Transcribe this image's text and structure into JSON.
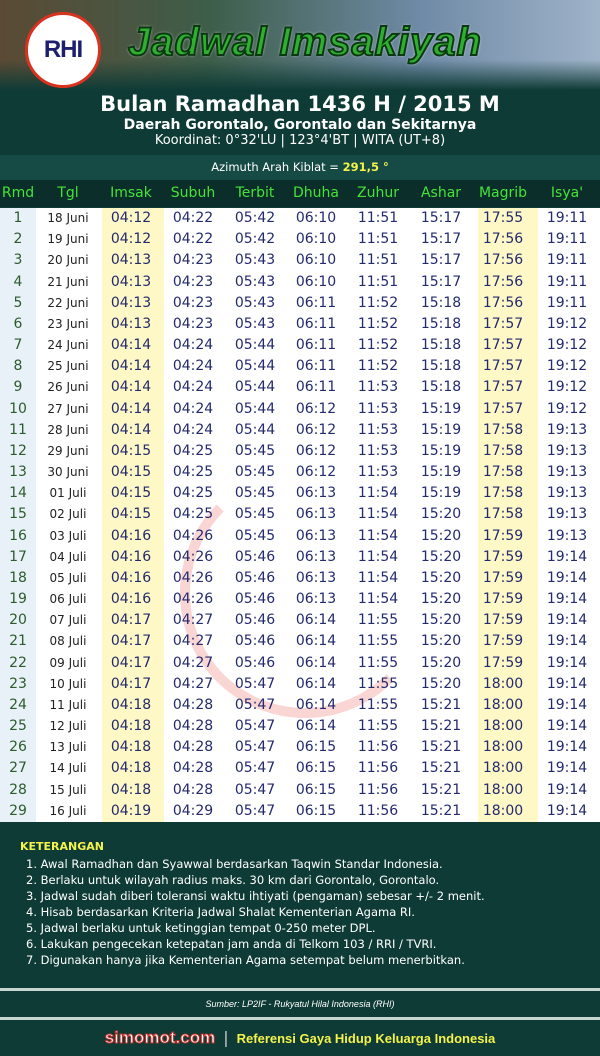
{
  "header": {
    "logo_text": "RHI",
    "title": "Jadwal Imsakiyah",
    "subtitle": "Bulan Ramadhan 1436 H / 2015 M",
    "region": "Daerah Gorontalo, Gorontalo dan Sekitarnya",
    "coordinates": "Koordinat: 0°32'LU | 123°4'BT | WITA (UT+8)",
    "azimuth_label": "Azimuth Arah Kiblat = ",
    "azimuth_value": "291,5 °"
  },
  "columns": [
    "Rmd",
    "Tgl",
    "Imsak",
    "Subuh",
    "Terbit",
    "Dhuha",
    "Zuhur",
    "Ashar",
    "Magrib",
    "Isya'"
  ],
  "rows": [
    [
      "1",
      "18 Juni",
      "04:12",
      "04:22",
      "05:42",
      "06:10",
      "11:51",
      "15:17",
      "17:55",
      "19:11"
    ],
    [
      "2",
      "19 Juni",
      "04:12",
      "04:22",
      "05:42",
      "06:10",
      "11:51",
      "15:17",
      "17:56",
      "19:11"
    ],
    [
      "3",
      "20 Juni",
      "04:13",
      "04:23",
      "05:43",
      "06:10",
      "11:51",
      "15:17",
      "17:56",
      "19:11"
    ],
    [
      "4",
      "21 Juni",
      "04:13",
      "04:23",
      "05:43",
      "06:10",
      "11:51",
      "15:17",
      "17:56",
      "19:11"
    ],
    [
      "5",
      "22 Juni",
      "04:13",
      "04:23",
      "05:43",
      "06:11",
      "11:52",
      "15:18",
      "17:56",
      "19:11"
    ],
    [
      "6",
      "23 Juni",
      "04:13",
      "04:23",
      "05:43",
      "06:11",
      "11:52",
      "15:18",
      "17:57",
      "19:12"
    ],
    [
      "7",
      "24 Juni",
      "04:14",
      "04:24",
      "05:44",
      "06:11",
      "11:52",
      "15:18",
      "17:57",
      "19:12"
    ],
    [
      "8",
      "25 Juni",
      "04:14",
      "04:24",
      "05:44",
      "06:11",
      "11:52",
      "15:18",
      "17:57",
      "19:12"
    ],
    [
      "9",
      "26 Juni",
      "04:14",
      "04:24",
      "05:44",
      "06:11",
      "11:53",
      "15:18",
      "17:57",
      "19:12"
    ],
    [
      "10",
      "27 Juni",
      "04:14",
      "04:24",
      "05:44",
      "06:12",
      "11:53",
      "15:19",
      "17:57",
      "19:12"
    ],
    [
      "11",
      "28 Juni",
      "04:14",
      "04:24",
      "05:44",
      "06:12",
      "11:53",
      "15:19",
      "17:58",
      "19:13"
    ],
    [
      "12",
      "29 Juni",
      "04:15",
      "04:25",
      "05:45",
      "06:12",
      "11:53",
      "15:19",
      "17:58",
      "19:13"
    ],
    [
      "13",
      "30 Juni",
      "04:15",
      "04:25",
      "05:45",
      "06:12",
      "11:53",
      "15:19",
      "17:58",
      "19:13"
    ],
    [
      "14",
      "01 Juli",
      "04:15",
      "04:25",
      "05:45",
      "06:13",
      "11:54",
      "15:19",
      "17:58",
      "19:13"
    ],
    [
      "15",
      "02 Juli",
      "04:15",
      "04:25",
      "05:45",
      "06:13",
      "11:54",
      "15:20",
      "17:58",
      "19:13"
    ],
    [
      "16",
      "03 Juli",
      "04:16",
      "04:26",
      "05:45",
      "06:13",
      "11:54",
      "15:20",
      "17:59",
      "19:13"
    ],
    [
      "17",
      "04 Juli",
      "04:16",
      "04:26",
      "05:46",
      "06:13",
      "11:54",
      "15:20",
      "17:59",
      "19:14"
    ],
    [
      "18",
      "05 Juli",
      "04:16",
      "04:26",
      "05:46",
      "06:13",
      "11:54",
      "15:20",
      "17:59",
      "19:14"
    ],
    [
      "19",
      "06 Juli",
      "04:16",
      "04:26",
      "05:46",
      "06:13",
      "11:54",
      "15:20",
      "17:59",
      "19:14"
    ],
    [
      "20",
      "07 Juli",
      "04:17",
      "04:27",
      "05:46",
      "06:14",
      "11:55",
      "15:20",
      "17:59",
      "19:14"
    ],
    [
      "21",
      "08 Juli",
      "04:17",
      "04:27",
      "05:46",
      "06:14",
      "11:55",
      "15:20",
      "17:59",
      "19:14"
    ],
    [
      "22",
      "09 Juli",
      "04:17",
      "04:27",
      "05:46",
      "06:14",
      "11:55",
      "15:20",
      "17:59",
      "19:14"
    ],
    [
      "23",
      "10 Juli",
      "04:17",
      "04:27",
      "05:47",
      "06:14",
      "11:55",
      "15:20",
      "18:00",
      "19:14"
    ],
    [
      "24",
      "11 Juli",
      "04:18",
      "04:28",
      "05:47",
      "06:14",
      "11:55",
      "15:21",
      "18:00",
      "19:14"
    ],
    [
      "25",
      "12 Juli",
      "04:18",
      "04:28",
      "05:47",
      "06:14",
      "11:55",
      "15:21",
      "18:00",
      "19:14"
    ],
    [
      "26",
      "13 Juli",
      "04:18",
      "04:28",
      "05:47",
      "06:15",
      "11:56",
      "15:21",
      "18:00",
      "19:14"
    ],
    [
      "27",
      "14 Juli",
      "04:18",
      "04:28",
      "05:47",
      "06:15",
      "11:56",
      "15:21",
      "18:00",
      "19:14"
    ],
    [
      "28",
      "15 Juli",
      "04:18",
      "04:28",
      "05:47",
      "06:15",
      "11:56",
      "15:21",
      "18:00",
      "19:14"
    ],
    [
      "29",
      "16 Juli",
      "04:19",
      "04:29",
      "05:47",
      "06:15",
      "11:56",
      "15:21",
      "18:00",
      "19:14"
    ]
  ],
  "watermark": "simomot.com",
  "notes": {
    "title": "KETERANGAN",
    "items": [
      "1. Awal Ramadhan dan Syawwal berdasarkan Taqwin Standar Indonesia.",
      "2. Berlaku untuk wilayah radius maks. 30 km dari Gorontalo, Gorontalo.",
      "3. Jadwal sudah diberi toleransi waktu ihtiyati (pengaman) sebesar +/- 2 menit.",
      "4. Hisab berdasarkan Kriteria Jadwal Shalat Kementerian Agama RI.",
      "5. Jadwal berlaku untuk ketinggian tempat 0-250 meter DPL.",
      "6. Lakukan pengecekan ketepatan jam anda di Telkom 103 / RRI / TVRI.",
      "7. Digunakan hanya jika Kementerian Agama setempat belum menerbitkan."
    ]
  },
  "source": "Sumber: LP2IF - Rukyatul Hilal Indonesia (RHI)",
  "footer": {
    "site": "simomot.com",
    "separator": "|",
    "tagline": "Referensi Gaya Hidup Keluarga Indonesia"
  },
  "colors": {
    "highlight_columns": "#fdf8c6",
    "header_text": "#45e33a",
    "accent_yellow": "#f4f34a",
    "background": "#0f3b36"
  }
}
